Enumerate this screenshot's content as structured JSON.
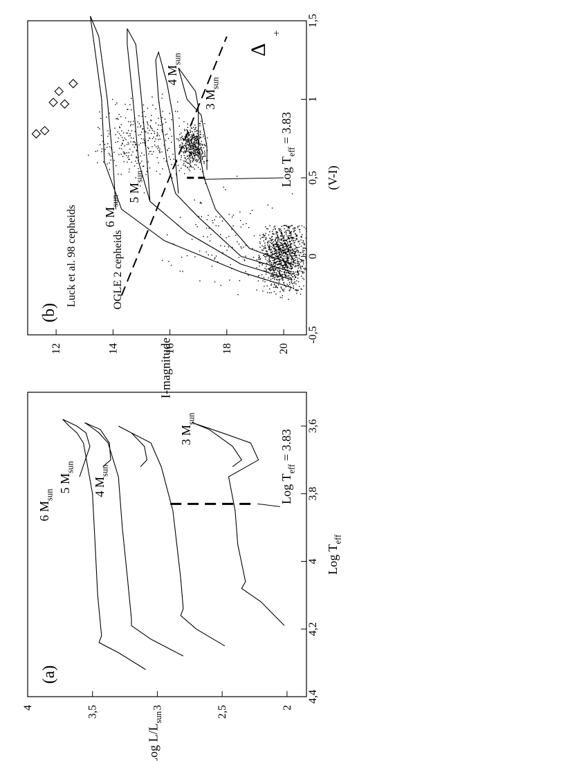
{
  "chart_data": [
    {
      "panel_label": "(a)",
      "type": "line",
      "xlabel": "Log T",
      "xlabel_sub": "eff",
      "ylabel": "Log L/L",
      "ylabel_sub": "sun",
      "x_axis_reversed": true,
      "xlim": [
        4.4,
        3.5
      ],
      "ylim": [
        1.85,
        4.0
      ],
      "xticks": [
        "4,4",
        "4,2",
        "4",
        "3,8",
        "3,6"
      ],
      "xtick_values": [
        4.4,
        4.2,
        4.0,
        3.8,
        3.6
      ],
      "yticks": [
        "4",
        "3,5",
        "3",
        "2,5",
        "2"
      ],
      "ytick_values": [
        4.0,
        3.5,
        3.0,
        2.5,
        2.0
      ],
      "grid": false,
      "series": [
        {
          "name": "6 M",
          "name_sub": "sun",
          "x": [
            4.32,
            4.27,
            4.24,
            4.22,
            4.1,
            3.95,
            3.8,
            3.65,
            3.62,
            3.6,
            3.58,
            3.6,
            3.62,
            3.66,
            3.75
          ],
          "y": [
            3.09,
            3.3,
            3.45,
            3.43,
            3.46,
            3.48,
            3.5,
            3.57,
            3.62,
            3.68,
            3.73,
            3.62,
            3.55,
            3.52,
            3.6
          ]
        },
        {
          "name": "5 M",
          "name_sub": "sun",
          "x": [
            4.28,
            4.23,
            4.19,
            4.17,
            4.05,
            3.9,
            3.75,
            3.65,
            3.62,
            3.6,
            3.59,
            3.61,
            3.65,
            3.7,
            3.72
          ],
          "y": [
            2.8,
            3.05,
            3.2,
            3.2,
            3.23,
            3.27,
            3.3,
            3.38,
            3.45,
            3.52,
            3.56,
            3.44,
            3.37,
            3.36,
            3.42
          ]
        },
        {
          "name": "4 M",
          "name_sub": "sun",
          "x": [
            4.25,
            4.2,
            4.16,
            4.14,
            4.05,
            3.95,
            3.85,
            3.72,
            3.65,
            3.62,
            3.6,
            3.62,
            3.66,
            3.7,
            3.72
          ],
          "y": [
            2.48,
            2.7,
            2.82,
            2.8,
            2.82,
            2.85,
            2.88,
            2.97,
            3.05,
            3.2,
            3.3,
            3.2,
            3.1,
            3.08,
            3.13
          ]
        },
        {
          "name": "3 M",
          "name_sub": "sun",
          "x": [
            4.19,
            4.12,
            4.08,
            4.06,
            3.95,
            3.85,
            3.75,
            3.7,
            3.65,
            3.62,
            3.59,
            3.61,
            3.66,
            3.7,
            3.72
          ],
          "y": [
            2.02,
            2.2,
            2.35,
            2.32,
            2.38,
            2.4,
            2.45,
            2.22,
            2.28,
            2.5,
            2.73,
            2.6,
            2.42,
            2.35,
            2.42
          ]
        }
      ],
      "annotations": [
        {
          "text": "Log T",
          "sub": "eff",
          "text_after": " = 3.83",
          "marker": "dashed-line",
          "x": 3.83,
          "y_range": [
            2.27,
            2.9
          ]
        }
      ]
    },
    {
      "panel_label": "(b)",
      "type": "scatter",
      "xlabel": "(V-I)",
      "ylabel": "I-magnitude",
      "y_axis_reversed": true,
      "xlim": [
        -0.5,
        1.5
      ],
      "ylim": [
        20.8,
        11.0
      ],
      "xticks": [
        "-0,5",
        "0",
        "0,5",
        "1",
        "1,5"
      ],
      "xtick_values": [
        -0.5,
        0.0,
        0.5,
        1.0,
        1.5
      ],
      "yticks": [
        "12",
        "14",
        "16",
        "18",
        "20"
      ],
      "ytick_values": [
        12,
        14,
        16,
        18,
        20
      ],
      "grid": false,
      "series": [
        {
          "name": "Luck et al. 98 cepheids",
          "marker": "diamond",
          "x": [
            0.78,
            0.8,
            0.98,
            1.05,
            0.97,
            1.1
          ],
          "y": [
            11.3,
            11.6,
            11.9,
            12.1,
            12.3,
            12.6
          ]
        }
      ],
      "point_clouds": [
        {
          "description_label": "main sequence",
          "x_range": [
            -0.4,
            0.2
          ],
          "y_range": [
            18.5,
            20.8
          ]
        },
        {
          "description_label": "red clump",
          "x_range": [
            0.55,
            0.9
          ],
          "y_range": [
            16.2,
            17.3
          ]
        },
        {
          "description_label": "OGLE 2 cepheids",
          "x_range": [
            0.5,
            1.05
          ],
          "y_range": [
            13.0,
            16.2
          ]
        }
      ],
      "tracks": [
        {
          "label": "6 M",
          "label_sub": "sun"
        },
        {
          "label": "5 M",
          "label_sub": "sun"
        },
        {
          "label": "4 M",
          "label_sub": "sun"
        },
        {
          "label": "3 M",
          "label_sub": "sun"
        }
      ],
      "annotations": [
        {
          "text": "OGLE 2 cepheids"
        },
        {
          "text": "Luck et al. 98 cepheids"
        },
        {
          "text": "Log T",
          "sub": "eff",
          "text_after": " = 3.83",
          "x": 0.5,
          "y": 17.0
        },
        {
          "text": "Δ",
          "marker": "dashed-line",
          "x_range": [
            -0.25,
            1.4
          ],
          "y_range": [
            14.3,
            18.0
          ]
        }
      ]
    }
  ]
}
